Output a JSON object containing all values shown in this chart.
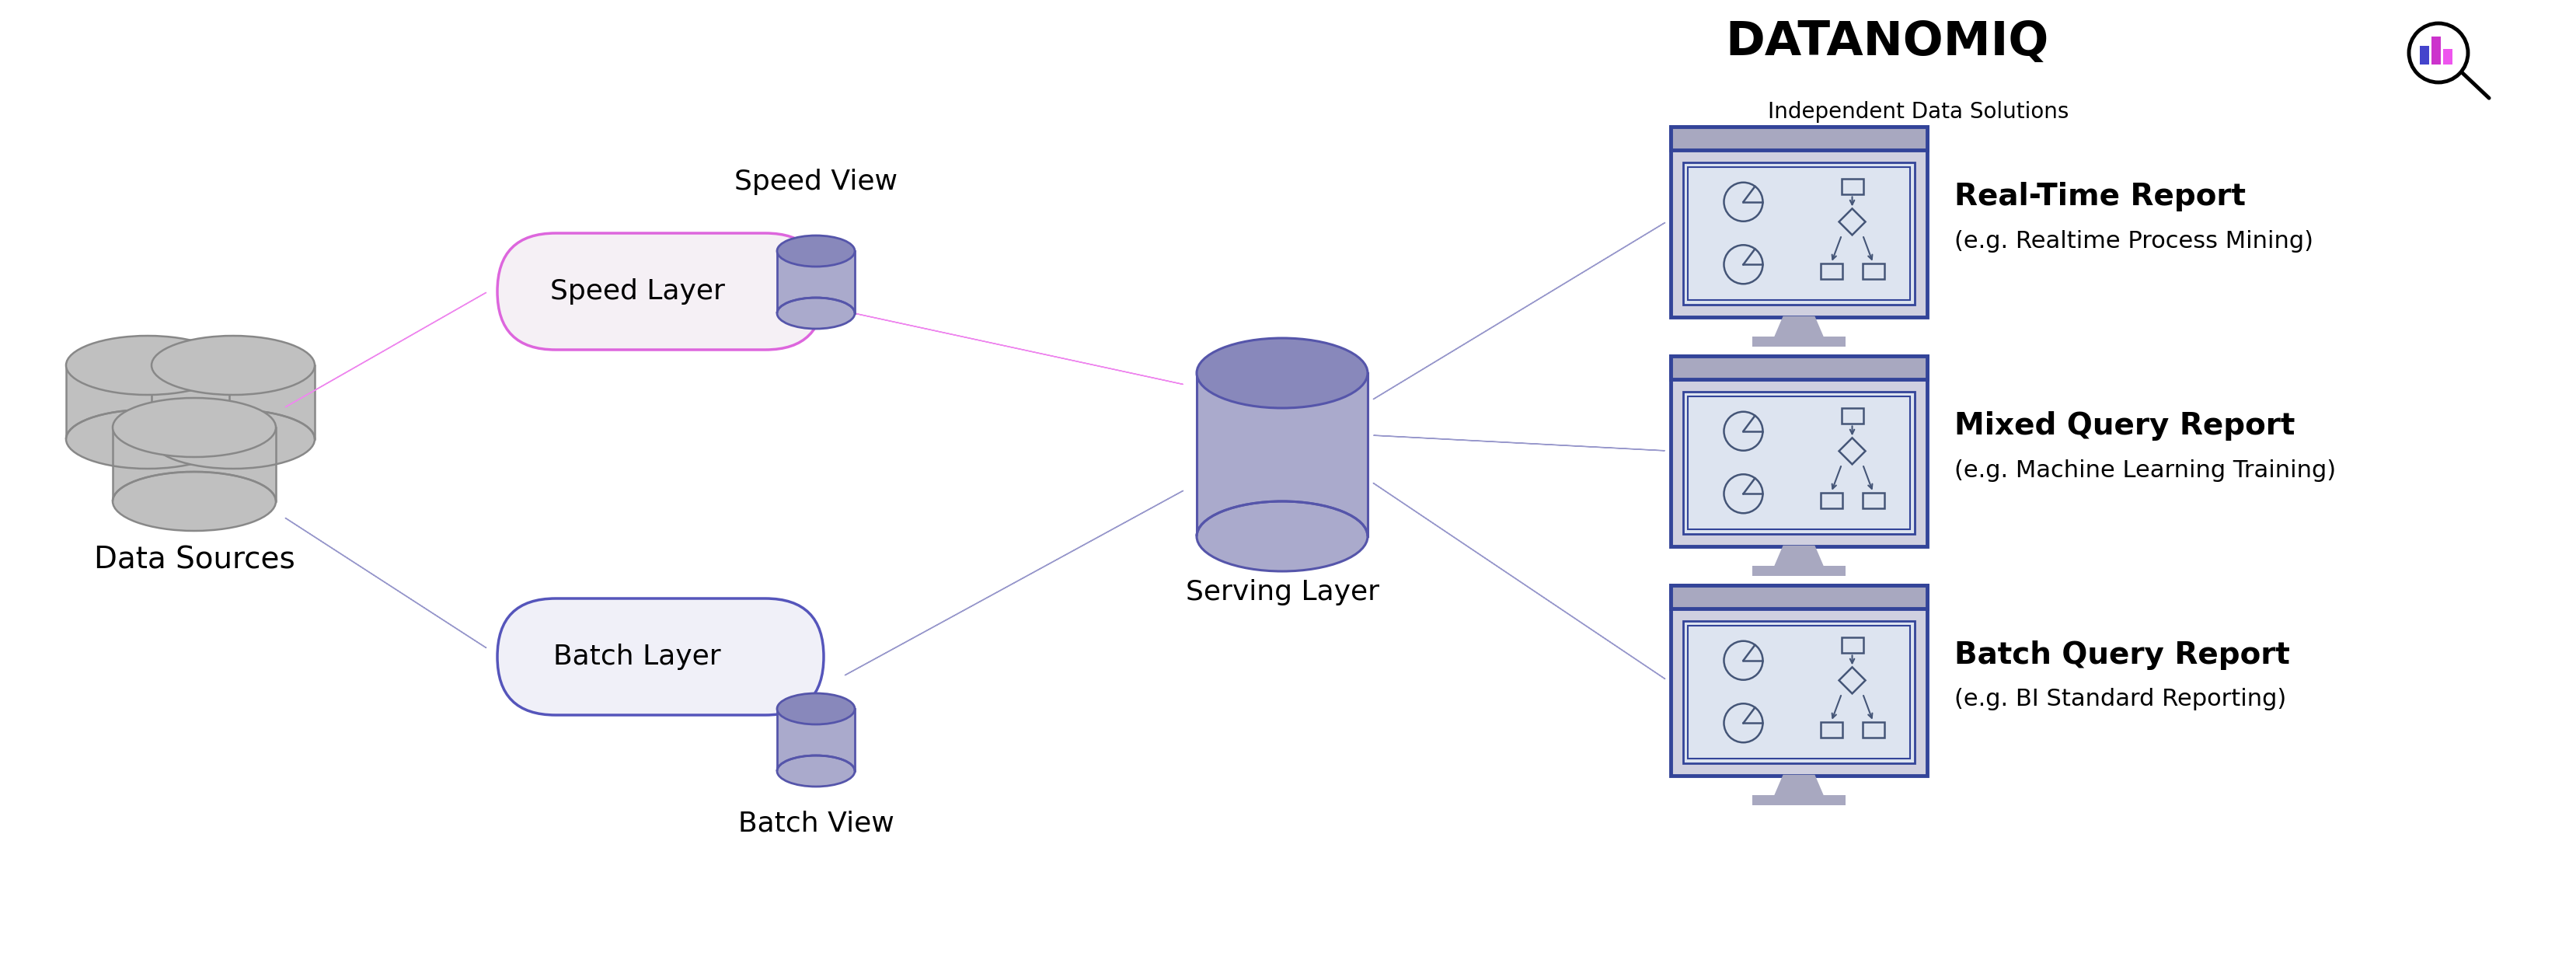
{
  "bg_color": "#ffffff",
  "label_font": 28,
  "sublabel_font": 22,
  "logo_text": "DATANOMIQ",
  "logo_sub": "Independent Data Solutions",
  "data_sources_label": "Data Sources",
  "speed_layer_label": "Speed Layer",
  "batch_layer_label": "Batch Layer",
  "speed_view_label": "Speed View",
  "batch_view_label": "Batch View",
  "serving_layer_label": "Serving Layer",
  "reports": [
    {
      "title": "Real-Time Report",
      "sub": "(e.g. Realtime Process Mining)"
    },
    {
      "title": "Mixed Query Report",
      "sub": "(e.g. Machine Learning Training)"
    },
    {
      "title": "Batch Query Report",
      "sub": "(e.g. BI Standard Reporting)"
    }
  ],
  "pink_color": "#EE88EE",
  "purple_color": "#9999CC",
  "speed_capsule_face": "#f5f0f5",
  "speed_capsule_edge": "#DD66DD",
  "batch_capsule_face": "#f0f0f8",
  "batch_capsule_edge": "#5555BB",
  "db_body_fill": "#aaaacc",
  "db_top_fill": "#8888bb",
  "db_edge": "#5555AA",
  "serving_fill": "#aaaacc",
  "serving_top_fill": "#8888bb",
  "serving_edge": "#5555AA",
  "datasrc_fill": "#c0c0c0",
  "datasrc_edge": "#888888",
  "monitor_border": "#334499",
  "monitor_topbar": "#a8a8c0",
  "monitor_screen": "#dde4f0",
  "monitor_frame": "#d0d0e0"
}
